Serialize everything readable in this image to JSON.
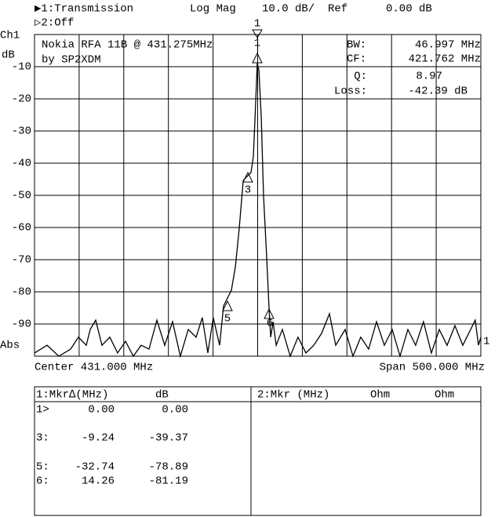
{
  "header": {
    "channel1": "▶1:Transmission",
    "format": "Log Mag",
    "scale": "10.0 dB/",
    "ref_label": "Ref",
    "ref_value": "0.00 dB",
    "channel2": "▷2:Off"
  },
  "axis_side": {
    "channel": "Ch1",
    "unit": "dB",
    "abs": "Abs",
    "ref_marker": "1"
  },
  "info": {
    "line1": "Nokia RFA 11B @ 431.275MHz",
    "line2": "by SP2XDM",
    "bw_label": "BW:",
    "bw_value": "46.997 MHz",
    "cf_label": "CF:",
    "cf_value": "421.762 MHz",
    "q_label": "Q:",
    "q_value": "8.97",
    "loss_label": "Loss:",
    "loss_value": "-42.39 dB"
  },
  "footer": {
    "center": "Center 431.000 MHz",
    "span": "Span 500.000 MHz"
  },
  "markers": [
    "1",
    "1",
    "3",
    "5",
    "6"
  ],
  "table": {
    "left_header": [
      "1:Mkr∆(MHz)",
      "dB"
    ],
    "right_header": [
      "2:Mkr (MHz)",
      "Ohm",
      "Ohm"
    ],
    "rows": [
      [
        "1>",
        "0.00",
        "0.00"
      ],
      [
        "3:",
        "-9.24",
        "-39.37"
      ],
      [
        "5:",
        "-32.74",
        "-78.89"
      ],
      [
        "6:",
        "14.26",
        "-81.19"
      ]
    ]
  },
  "chart_data": {
    "type": "line",
    "x": [
      181.0,
      195.1,
      208.2,
      221.4,
      230.2,
      239.0,
      243.4,
      249.5,
      256.6,
      265.4,
      274.1,
      282.9,
      291.7,
      300.5,
      309.3,
      318.1,
      326.9,
      335.7,
      344.4,
      353.2,
      362.0,
      369.0,
      375.2,
      381.3,
      388.4,
      392.8,
      401.6,
      406.0,
      410.4,
      414.8,
      419.1,
      423.5,
      426.2,
      428.8,
      430.6,
      432.4,
      435.0,
      437.6,
      441.2,
      443.8,
      445.6,
      448.2,
      451.7,
      458.7,
      467.5,
      476.2,
      485.0,
      493.8,
      502.6,
      511.4,
      518.4,
      529.0,
      537.8,
      546.5,
      555.3,
      564.1,
      572.9,
      581.7,
      590.5,
      599.3,
      608.0,
      616.8,
      625.6,
      634.4,
      643.2,
      652.0,
      660.8,
      669.6,
      674.8,
      678.4,
      681.0
    ],
    "series": [
      {
        "color": "#000000",
        "values": [
          -99.0,
          -96.6,
          -100,
          -97.8,
          -94.1,
          -96.6,
          -91.7,
          -88.8,
          -96.6,
          -94.1,
          -99.0,
          -95.4,
          -100,
          -96.6,
          -97.8,
          -88.8,
          -96.6,
          -89.3,
          -100,
          -91.7,
          -94.1,
          -88.0,
          -99.0,
          -88.0,
          -96.6,
          -84.4,
          -79.5,
          -72.2,
          -60.0,
          -45.4,
          -44.1,
          -42.9,
          -38.0,
          -20.9,
          -8.8,
          -11.2,
          -25.9,
          -50.2,
          -69.8,
          -85.6,
          -94.1,
          -89.3,
          -96.6,
          -91.7,
          -100,
          -94.1,
          -99.0,
          -96.6,
          -92.9,
          -86.8,
          -96.6,
          -91.7,
          -100,
          -94.1,
          -97.8,
          -89.3,
          -96.6,
          -91.7,
          -100,
          -91.7,
          -96.6,
          -89.3,
          -99.0,
          -91.7,
          -96.6,
          -90.5,
          -96.6,
          -91.7,
          -88.8,
          -96.6,
          -94.1
        ]
      }
    ],
    "xlim": [
      181,
      681
    ],
    "ylim": [
      -100,
      0
    ],
    "xticks": [
      231,
      281,
      331,
      381,
      431,
      481,
      531,
      581,
      631
    ],
    "yticks": [
      -90,
      -80,
      -70,
      -60,
      -50,
      -40,
      -30,
      -20,
      -10
    ],
    "grid": true
  }
}
